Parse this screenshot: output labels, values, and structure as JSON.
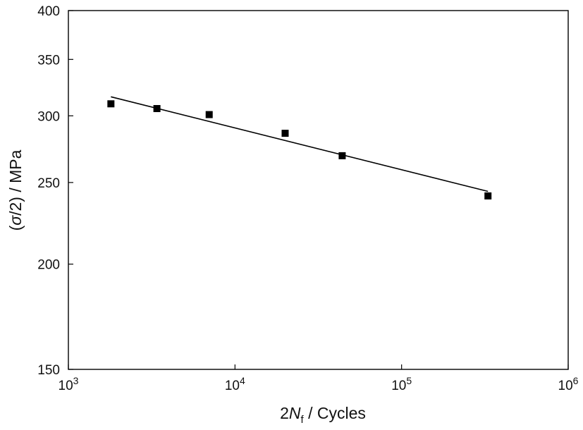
{
  "chart_data": {
    "type": "scatter",
    "title": "",
    "xlabel": {
      "prefix": "2",
      "symbol": "N",
      "subscript": "f",
      "suffix": " / Cycles"
    },
    "ylabel": {
      "open": "(",
      "symbol": "σ",
      "rest": "/2) / MPa"
    },
    "x_scale": "log",
    "y_scale": "log",
    "xlim": [
      1000,
      1000000
    ],
    "ylim": [
      150,
      400
    ],
    "x_ticks": [
      {
        "value": 1000,
        "base": "10",
        "exp": "3"
      },
      {
        "value": 10000,
        "base": "10",
        "exp": "4"
      },
      {
        "value": 100000,
        "base": "10",
        "exp": "5"
      },
      {
        "value": 1000000,
        "base": "10",
        "exp": "6"
      }
    ],
    "y_ticks": [
      {
        "value": 150,
        "label": "150"
      },
      {
        "value": 200,
        "label": "200"
      },
      {
        "value": 250,
        "label": "250"
      },
      {
        "value": 300,
        "label": "300"
      },
      {
        "value": 350,
        "label": "350"
      },
      {
        "value": 400,
        "label": "400"
      }
    ],
    "grid": false,
    "legend": "none",
    "series": [
      {
        "kind": "points",
        "marker": "square",
        "color": "#000000",
        "points": [
          {
            "x": 1800,
            "y": 310
          },
          {
            "x": 3400,
            "y": 306
          },
          {
            "x": 7000,
            "y": 301
          },
          {
            "x": 20000,
            "y": 286
          },
          {
            "x": 44000,
            "y": 269
          },
          {
            "x": 330000,
            "y": 241
          }
        ]
      },
      {
        "kind": "fit-line",
        "color": "#000000",
        "points": [
          {
            "x": 1800,
            "y": 316
          },
          {
            "x": 330000,
            "y": 244
          }
        ]
      }
    ]
  }
}
